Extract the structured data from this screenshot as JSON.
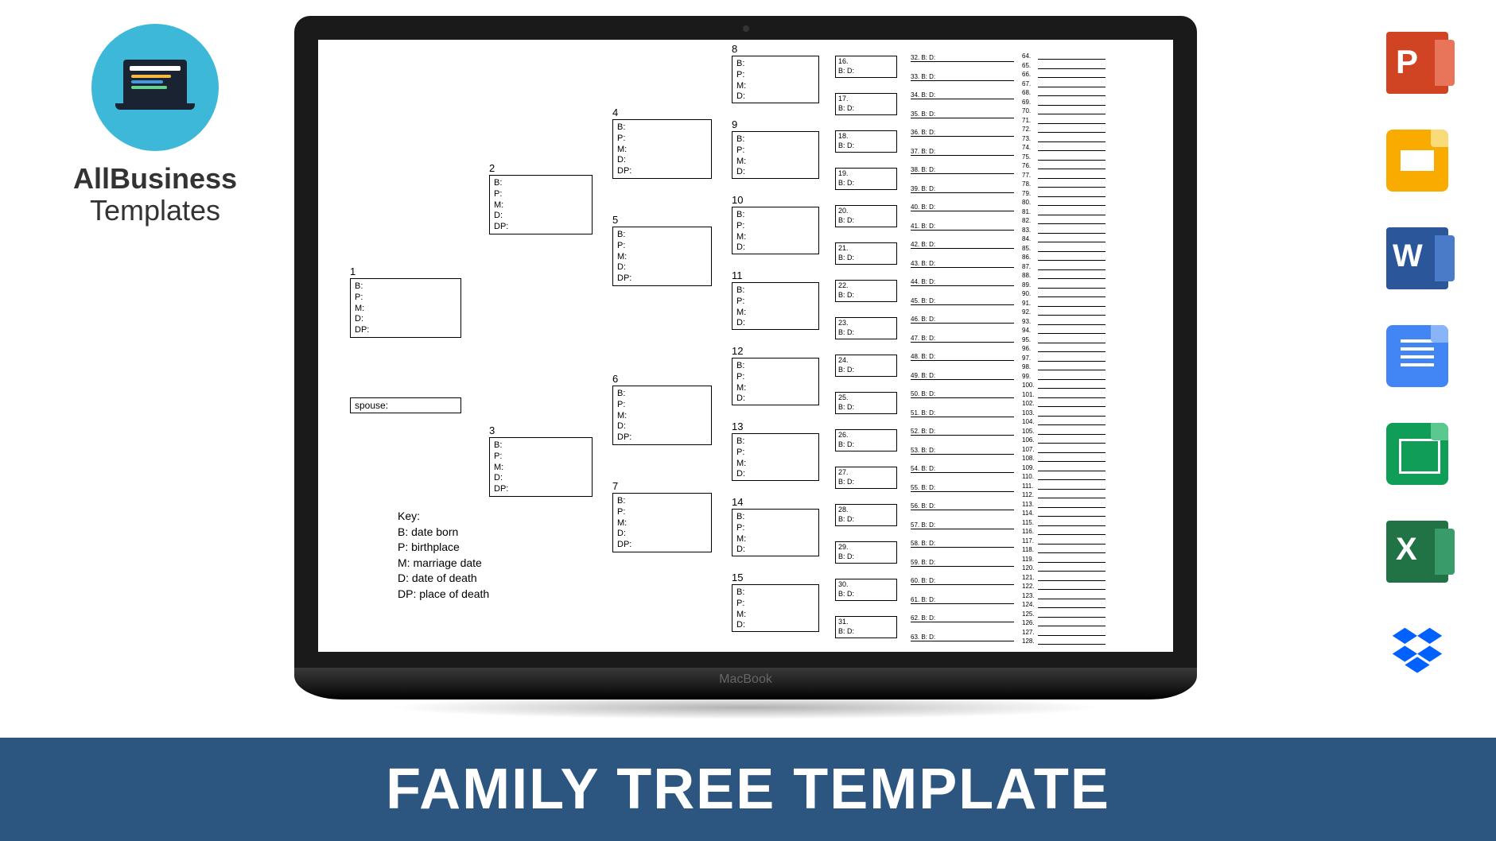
{
  "logo": {
    "line1": "AllBusiness",
    "line2": "Templates"
  },
  "banner": {
    "title": "FAMILY TREE TEMPLATE",
    "background": "#2c5680",
    "text_color": "#ffffff"
  },
  "macbook": {
    "label": "MacBook"
  },
  "tree": {
    "spouse_label": "spouse:",
    "key": {
      "title": "Key:",
      "b": "B: date born",
      "p": "P: birthplace",
      "m": "M: marriage date",
      "d": "D: date of death",
      "dp": "DP: place of death"
    },
    "field_lines_long": "B:\nP:\nM:\nD:\nDP:",
    "field_lines_short": "B:\nP:\nM:\nD:",
    "gen1": [
      {
        "num": "1"
      }
    ],
    "gen2": [
      {
        "num": "2"
      },
      {
        "num": "3"
      }
    ],
    "gen3": [
      {
        "num": "4"
      },
      {
        "num": "5"
      },
      {
        "num": "6"
      },
      {
        "num": "7"
      }
    ],
    "gen4": [
      {
        "num": "8"
      },
      {
        "num": "9"
      },
      {
        "num": "10"
      },
      {
        "num": "11"
      },
      {
        "num": "12"
      },
      {
        "num": "13"
      },
      {
        "num": "14"
      },
      {
        "num": "15"
      }
    ],
    "gen5": [
      {
        "num": "16."
      },
      {
        "num": "17."
      },
      {
        "num": "18."
      },
      {
        "num": "19."
      },
      {
        "num": "20."
      },
      {
        "num": "21."
      },
      {
        "num": "22."
      },
      {
        "num": "23."
      },
      {
        "num": "24."
      },
      {
        "num": "25."
      },
      {
        "num": "26."
      },
      {
        "num": "27."
      },
      {
        "num": "28."
      },
      {
        "num": "29."
      },
      {
        "num": "30."
      },
      {
        "num": "31."
      }
    ],
    "gen5_fields": "B:       D:",
    "gen6_start": 32,
    "gen6_end": 63,
    "gen6_fields": "B:       D:",
    "gen7_start": 64,
    "gen7_end": 128
  },
  "icons": [
    {
      "name": "powerpoint",
      "color": "#d04423"
    },
    {
      "name": "google-slides",
      "color": "#f9ab00"
    },
    {
      "name": "word",
      "color": "#2b579a"
    },
    {
      "name": "google-docs",
      "color": "#4285f4"
    },
    {
      "name": "google-sheets",
      "color": "#0f9d58"
    },
    {
      "name": "excel",
      "color": "#217346"
    },
    {
      "name": "dropbox",
      "color": "#0061ff"
    }
  ]
}
